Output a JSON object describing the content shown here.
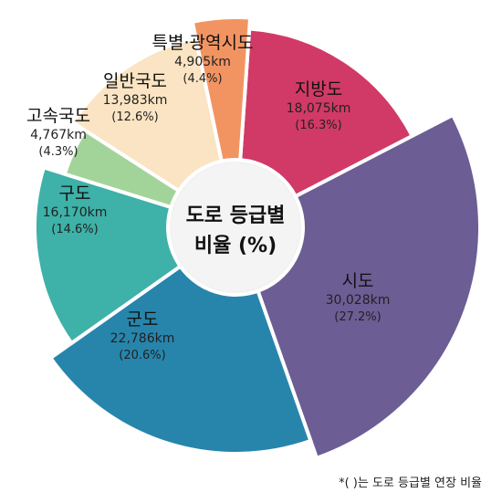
{
  "chart_data": {
    "type": "pie",
    "center_label": [
      "도로 등급별",
      "비율 (%)"
    ],
    "slices": [
      {
        "name": "지방도",
        "length": "18,075km",
        "percent_label": "(16.3%)",
        "value": 16.3,
        "color": "#d13a66"
      },
      {
        "name": "시도",
        "length": "30,028km",
        "percent_label": "(27.2%)",
        "value": 27.2,
        "color": "#6c5d94"
      },
      {
        "name": "군도",
        "length": "22,786km",
        "percent_label": "(20.6%)",
        "value": 20.6,
        "color": "#2785ac"
      },
      {
        "name": "구도",
        "length": "16,170km",
        "percent_label": "(14.6%)",
        "value": 14.6,
        "color": "#3eb1a8"
      },
      {
        "name": "고속국도",
        "length": "4,767km",
        "percent_label": "(4.3%)",
        "value": 4.3,
        "color": "#a2d49a"
      },
      {
        "name": "일반국도",
        "length": "13,983km",
        "percent_label": "(12.6%)",
        "value": 12.6,
        "color": "#fae4c3"
      },
      {
        "name": "특별·광역시도",
        "length": "4,905km",
        "percent_label": "(4.4%)",
        "value": 4.4,
        "color": "#f29462"
      }
    ]
  },
  "footnote": "*(  )는 도로 등급별 연장 비율"
}
